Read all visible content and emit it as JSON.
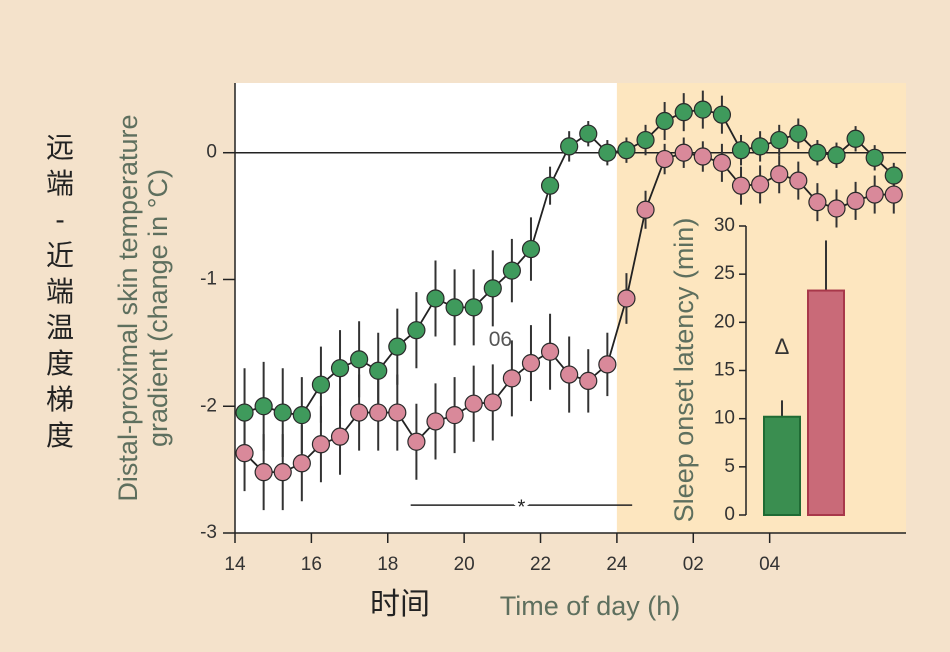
{
  "chart_data": [
    {
      "type": "line",
      "ylabel": [
        "Distal-proximal skin temperature",
        "gradient (change in °C)"
      ],
      "ylabel_cn": "远端-近端温度梯度",
      "xlabel_cn": "时间",
      "xlabel": "Time of day (h)",
      "xlim": [
        14,
        31.57
      ],
      "xticks": [
        14,
        16,
        18,
        20,
        22,
        24,
        {
          "value": 26,
          "label": "02"
        },
        {
          "value": 28,
          "label": "04"
        }
      ],
      "ylim": [
        -3,
        0.55
      ],
      "yticks": [
        -3,
        -2,
        -1,
        0
      ],
      "shade": {
        "from": 24,
        "to": 31.57,
        "color": "#fde6bf"
      },
      "annotations": [
        {
          "text": "06",
          "x": 20.95,
          "y": -1.48
        }
      ],
      "significance": {
        "label": "*",
        "x": [
          18.6,
          24.4
        ],
        "y": -2.78
      },
      "x": [
        14.25,
        14.75,
        15.25,
        15.75,
        16.25,
        16.75,
        17.25,
        17.75,
        18.25,
        18.75,
        19.25,
        19.75,
        20.25,
        20.75,
        21.25,
        21.75,
        22.25,
        22.75,
        23.25,
        23.75,
        24.25,
        24.75,
        25.25,
        25.75,
        26.25,
        26.75,
        27.25,
        27.75,
        28.25,
        28.75,
        29.25,
        29.75,
        30.25,
        30.75,
        31.25
      ],
      "series": [
        {
          "color": "#3f9a5c",
          "values": [
            -2.05,
            -2.0,
            -2.05,
            -2.07,
            -1.83,
            -1.7,
            -1.63,
            -1.72,
            -1.53,
            -1.4,
            -1.15,
            -1.22,
            -1.22,
            -1.07,
            -0.93,
            -0.76,
            -0.26,
            0.05,
            0.15,
            0.0,
            0.02,
            0.1,
            0.25,
            0.32,
            0.34,
            0.3,
            0.02,
            0.05,
            0.1,
            0.15,
            0.0,
            -0.02,
            0.11,
            -0.04,
            -0.18
          ],
          "errors": [
            0.35,
            0.35,
            0.35,
            0.3,
            0.3,
            0.3,
            0.3,
            0.3,
            0.3,
            0.3,
            0.3,
            0.3,
            0.3,
            0.3,
            0.25,
            0.25,
            0.15,
            0.12,
            0.1,
            0.1,
            0.1,
            0.12,
            0.15,
            0.15,
            0.15,
            0.15,
            0.12,
            0.12,
            0.12,
            0.12,
            0.1,
            0.1,
            0.1,
            0.1,
            0.1
          ]
        },
        {
          "color": "#d9899a",
          "values": [
            -2.37,
            -2.52,
            -2.52,
            -2.45,
            -2.3,
            -2.24,
            -2.05,
            -2.05,
            -2.05,
            -2.28,
            -2.12,
            -2.07,
            -1.98,
            -1.97,
            -1.78,
            -1.66,
            -1.57,
            -1.75,
            -1.8,
            -1.67,
            -1.15,
            -0.45,
            -0.05,
            0.0,
            -0.03,
            -0.08,
            -0.26,
            -0.25,
            -0.17,
            -0.22,
            -0.39,
            -0.44,
            -0.38,
            -0.33,
            -0.33
          ],
          "errors": [
            0.3,
            0.3,
            0.3,
            0.3,
            0.3,
            0.3,
            0.3,
            0.3,
            0.3,
            0.3,
            0.3,
            0.3,
            0.3,
            0.3,
            0.3,
            0.3,
            0.3,
            0.3,
            0.25,
            0.25,
            0.2,
            0.15,
            0.12,
            0.12,
            0.12,
            0.15,
            0.15,
            0.15,
            0.15,
            0.15,
            0.15,
            0.15,
            0.15,
            0.15,
            0.15
          ]
        }
      ]
    },
    {
      "type": "bar",
      "ylabel": "Sleep onset latency (min)",
      "ylim": [
        0,
        30
      ],
      "yticks": [
        0,
        5,
        10,
        15,
        20,
        25,
        30
      ],
      "categories": [
        null,
        null
      ],
      "values": [
        10.2,
        23.3
      ],
      "errors": [
        1.7,
        5.2
      ],
      "colors": [
        "#3a8e50",
        "#c96a78"
      ],
      "annotation": "Δ"
    }
  ]
}
